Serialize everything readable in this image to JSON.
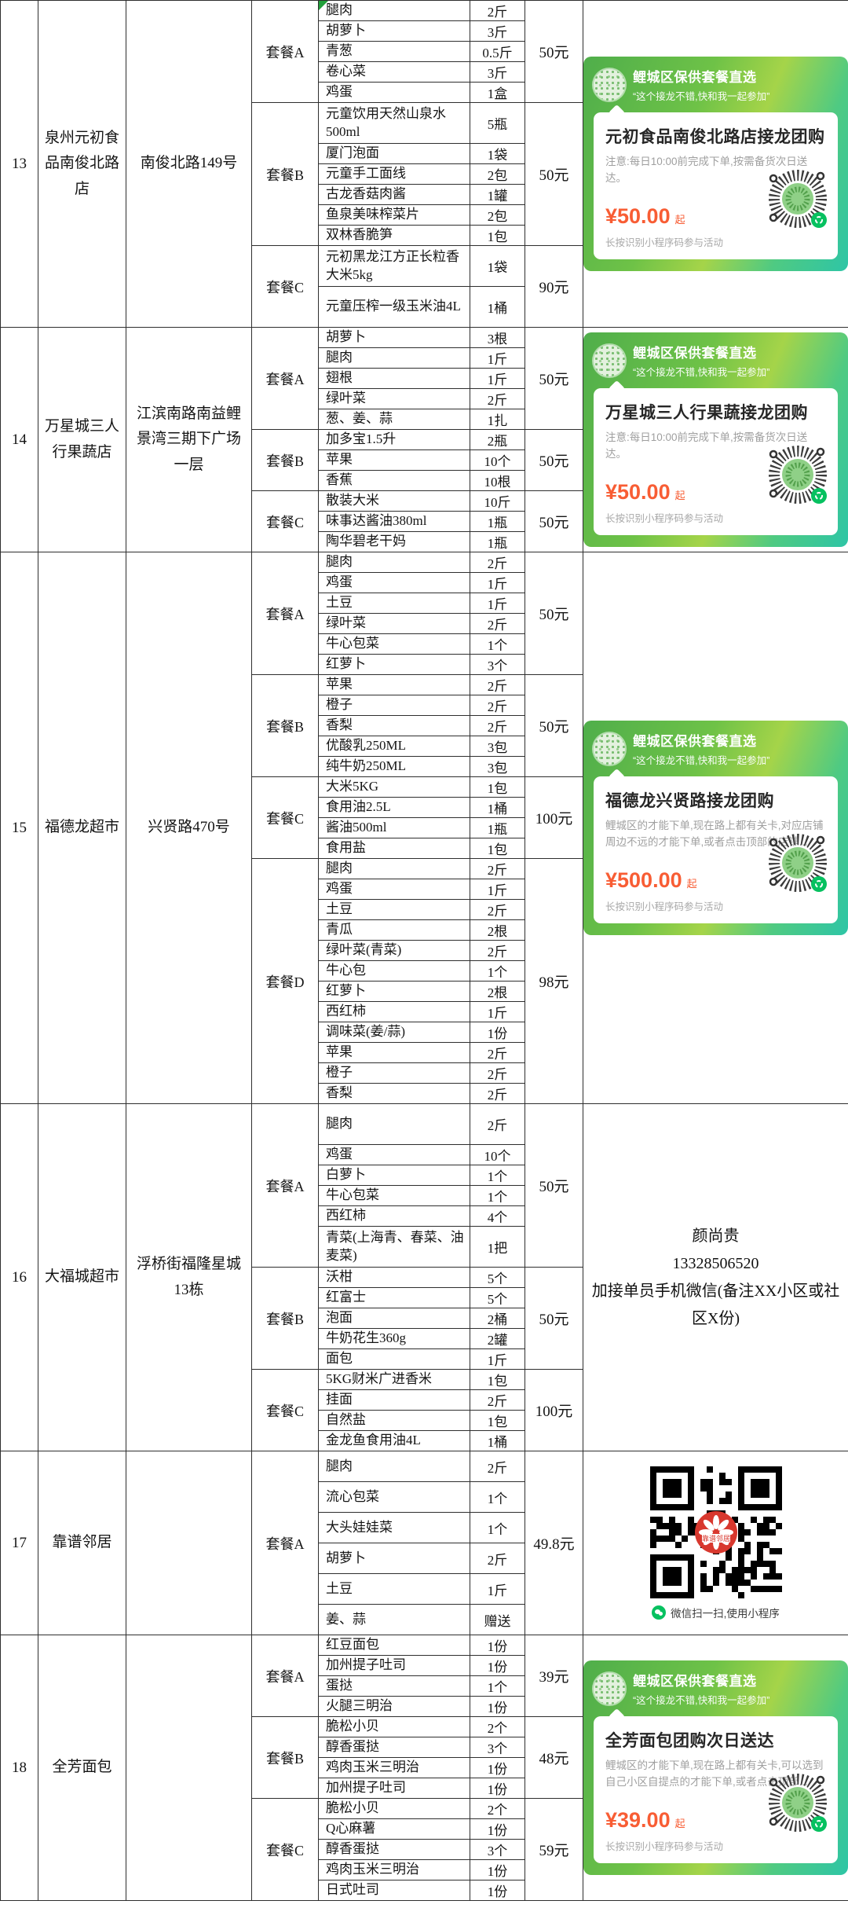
{
  "colors": {
    "card_green_start": "#4fae4b",
    "card_green_mid": "#a5d449",
    "card_teal_end": "#2ec5a6",
    "price_red": "#f85d34",
    "wechat_green": "#07c160",
    "marker_green": "#21a03a"
  },
  "card_common": {
    "header_title": "鲤城区保供套餐直选",
    "header_quote": "“这个接龙不错,快和我一起参加”",
    "price_suffix": "起",
    "footer": "长按识别小程序码参与活动"
  },
  "rows": [
    {
      "no": "13",
      "store": "泉州元初食品南俊北路店",
      "address": "南俊北路149号",
      "packages": [
        {
          "name": "套餐A",
          "price": "50元",
          "items": [
            {
              "name": "腿肉",
              "qty": "2斤",
              "marker": true
            },
            {
              "name": "胡萝卜",
              "qty": "3斤"
            },
            {
              "name": "青葱",
              "qty": "0.5斤"
            },
            {
              "name": "卷心菜",
              "qty": "3斤"
            },
            {
              "name": "鸡蛋",
              "qty": "1盒"
            }
          ]
        },
        {
          "name": "套餐B",
          "price": "50元",
          "items": [
            {
              "name": "元童饮用天然山泉水500ml",
              "qty": "5瓶",
              "h": 2
            },
            {
              "name": "厦门泡面",
              "qty": "1袋"
            },
            {
              "name": "元童手工面线",
              "qty": "2包"
            },
            {
              "name": "古龙香菇肉酱",
              "qty": "1罐"
            },
            {
              "name": "鱼泉美味榨菜片",
              "qty": "2包"
            },
            {
              "name": "双林香脆笋",
              "qty": "1包"
            }
          ]
        },
        {
          "name": "套餐C",
          "price": "90元",
          "items": [
            {
              "name": "元初黑龙江方正长粒香大米5kg",
              "qty": "1袋",
              "h": 2
            },
            {
              "name": "元童压榨一级玉米油4L",
              "qty": "1桶",
              "h": 2
            }
          ]
        }
      ],
      "right": {
        "type": "card",
        "title": "元初食品南俊北路店接龙团购",
        "note": "注意:每日10:00前完成下单,按需备货次日送达。",
        "price": "¥50.00"
      }
    },
    {
      "no": "14",
      "store": "万星城三人行果蔬店",
      "address": "江滨南路南益鲤景湾三期下广场一层",
      "packages": [
        {
          "name": "套餐A",
          "price": "50元",
          "items": [
            {
              "name": "胡萝卜",
              "qty": "3根"
            },
            {
              "name": "腿肉",
              "qty": "1斤"
            },
            {
              "name": "翅根",
              "qty": "1斤"
            },
            {
              "name": "绿叶菜",
              "qty": "2斤"
            },
            {
              "name": "葱、姜、蒜",
              "qty": "1扎"
            }
          ]
        },
        {
          "name": "套餐B",
          "price": "50元",
          "items": [
            {
              "name": "加多宝1.5升",
              "qty": "2瓶"
            },
            {
              "name": "苹果",
              "qty": "10个"
            },
            {
              "name": "香蕉",
              "qty": "10根"
            }
          ]
        },
        {
          "name": "套餐C",
          "price": "50元",
          "items": [
            {
              "name": "散装大米",
              "qty": "10斤"
            },
            {
              "name": "味事达酱油380ml",
              "qty": "1瓶"
            },
            {
              "name": "陶华碧老干妈",
              "qty": "1瓶"
            }
          ]
        }
      ],
      "right": {
        "type": "card",
        "title": "万星城三人行果蔬接龙团购",
        "note": "注意:每日10:00前完成下单,按需备货次日送达。",
        "price": "¥50.00"
      }
    },
    {
      "no": "15",
      "store": "福德龙超市",
      "address": "兴贤路470号",
      "packages": [
        {
          "name": "套餐A",
          "price": "50元",
          "items": [
            {
              "name": "腿肉",
              "qty": "2斤"
            },
            {
              "name": "鸡蛋",
              "qty": "1斤"
            },
            {
              "name": "土豆",
              "qty": "1斤"
            },
            {
              "name": "绿叶菜",
              "qty": "2斤"
            },
            {
              "name": "牛心包菜",
              "qty": "1个"
            },
            {
              "name": "红萝卜",
              "qty": "3个"
            }
          ]
        },
        {
          "name": "套餐B",
          "price": "50元",
          "items": [
            {
              "name": "苹果",
              "qty": "2斤"
            },
            {
              "name": "橙子",
              "qty": "2斤"
            },
            {
              "name": "香梨",
              "qty": "2斤"
            },
            {
              "name": "优酸乳250ML",
              "qty": "3包"
            },
            {
              "name": "纯牛奶250ML",
              "qty": "3包"
            }
          ]
        },
        {
          "name": "套餐C",
          "price": "100元",
          "items": [
            {
              "name": "大米5KG",
              "qty": "1包"
            },
            {
              "name": "食用油2.5L",
              "qty": "1桶"
            },
            {
              "name": "酱油500ml",
              "qty": "1瓶"
            },
            {
              "name": "食用盐",
              "qty": "1包"
            }
          ]
        },
        {
          "name": "套餐D",
          "price": "98元",
          "items": [
            {
              "name": "腿肉",
              "qty": "2斤"
            },
            {
              "name": "鸡蛋",
              "qty": "1斤"
            },
            {
              "name": "土豆",
              "qty": "2斤"
            },
            {
              "name": "青瓜",
              "qty": "2根"
            },
            {
              "name": "绿叶菜(青菜)",
              "qty": "2斤"
            },
            {
              "name": "牛心包",
              "qty": "1个"
            },
            {
              "name": "红萝卜",
              "qty": "2根"
            },
            {
              "name": "西红柿",
              "qty": "1斤"
            },
            {
              "name": "调味菜(姜/蒜)",
              "qty": "1份"
            },
            {
              "name": "苹果",
              "qty": "2斤"
            },
            {
              "name": "橙子",
              "qty": "2斤"
            },
            {
              "name": "香梨",
              "qty": "2斤"
            }
          ]
        }
      ],
      "right": {
        "type": "card",
        "title": "福德龙兴贤路接龙团购",
        "note": "鲤城区的才能下单,现在路上都有关卡,对应店铺周边不远的才能下单,或者点击顶部的店铺...",
        "price": "¥500.00"
      }
    },
    {
      "no": "16",
      "store": "大福城超市",
      "address": "浮桥街福隆星城13栋",
      "packages": [
        {
          "name": "套餐A",
          "price": "50元",
          "items": [
            {
              "name": "腿肉",
              "qty": "2斤",
              "h": 2
            },
            {
              "name": "鸡蛋",
              "qty": "10个"
            },
            {
              "name": "白萝卜",
              "qty": "1个"
            },
            {
              "name": "牛心包菜",
              "qty": "1个"
            },
            {
              "name": "西红柿",
              "qty": "4个"
            },
            {
              "name": "青菜(上海青、春菜、油麦菜)",
              "qty": "1把",
              "h": 2
            }
          ]
        },
        {
          "name": "套餐B",
          "price": "50元",
          "items": [
            {
              "name": "沃柑",
              "qty": "5个"
            },
            {
              "name": "红富士",
              "qty": "5个"
            },
            {
              "name": "泡面",
              "qty": "2桶"
            },
            {
              "name": "牛奶花生360g",
              "qty": "2罐"
            },
            {
              "name": "面包",
              "qty": "1斤"
            }
          ]
        },
        {
          "name": "套餐C",
          "price": "100元",
          "items": [
            {
              "name": "5KG财米广进香米",
              "qty": "1包"
            },
            {
              "name": "挂面",
              "qty": "2斤"
            },
            {
              "name": "自然盐",
              "qty": "1包"
            },
            {
              "name": "金龙鱼食用油4L",
              "qty": "1桶"
            }
          ]
        }
      ],
      "right": {
        "type": "text",
        "lines": [
          "颜尚贵",
          "13328506520",
          "加接单员手机微信(备注XX小区或社区X份)"
        ]
      }
    },
    {
      "no": "17",
      "store": "靠谱邻居",
      "address": "",
      "packages": [
        {
          "name": "套餐A",
          "price": "49.8元",
          "items": [
            {
              "name": "腿肉",
              "qty": "2斤",
              "h": 1.5
            },
            {
              "name": "流心包菜",
              "qty": "1个",
              "h": 1.5
            },
            {
              "name": "大头娃娃菜",
              "qty": "1个",
              "h": 1.5
            },
            {
              "name": "胡萝卜",
              "qty": "2斤",
              "h": 1.5
            },
            {
              "name": "土豆",
              "qty": "1斤",
              "h": 1.5
            },
            {
              "name": "姜、蒜",
              "qty": "赠送",
              "h": 1.5
            }
          ]
        }
      ],
      "right": {
        "type": "qr",
        "logo_text": "靠谱邻居",
        "caption": "微信扫一扫,使用小程序"
      }
    },
    {
      "no": "18",
      "store": "全芳面包",
      "address": "",
      "packages": [
        {
          "name": "套餐A",
          "price": "39元",
          "items": [
            {
              "name": "红豆面包",
              "qty": "1份"
            },
            {
              "name": "加州提子吐司",
              "qty": "1份"
            },
            {
              "name": "蛋挞",
              "qty": "1个"
            },
            {
              "name": "火腿三明治",
              "qty": "1份"
            }
          ]
        },
        {
          "name": "套餐B",
          "price": "48元",
          "items": [
            {
              "name": "脆松小贝",
              "qty": "2个"
            },
            {
              "name": "醇香蛋挞",
              "qty": "3个"
            },
            {
              "name": "鸡肉玉米三明治",
              "qty": "1份"
            },
            {
              "name": "加州提子吐司",
              "qty": "1份"
            }
          ]
        },
        {
          "name": "套餐C",
          "price": "59元",
          "items": [
            {
              "name": "脆松小贝",
              "qty": "2个"
            },
            {
              "name": "Q心麻薯",
              "qty": "1份"
            },
            {
              "name": "醇香蛋挞",
              "qty": "3个"
            },
            {
              "name": "鸡肉玉米三明治",
              "qty": "1份"
            },
            {
              "name": "日式吐司",
              "qty": "1份"
            }
          ]
        }
      ],
      "right": {
        "type": "card",
        "title": "全芳面包团购次日送达",
        "note": "鲤城区的才能下单,现在路上都有关卡,可以选到自己小区自提点的才能下单,或者点击顶部...",
        "price": "¥39.00"
      }
    }
  ]
}
